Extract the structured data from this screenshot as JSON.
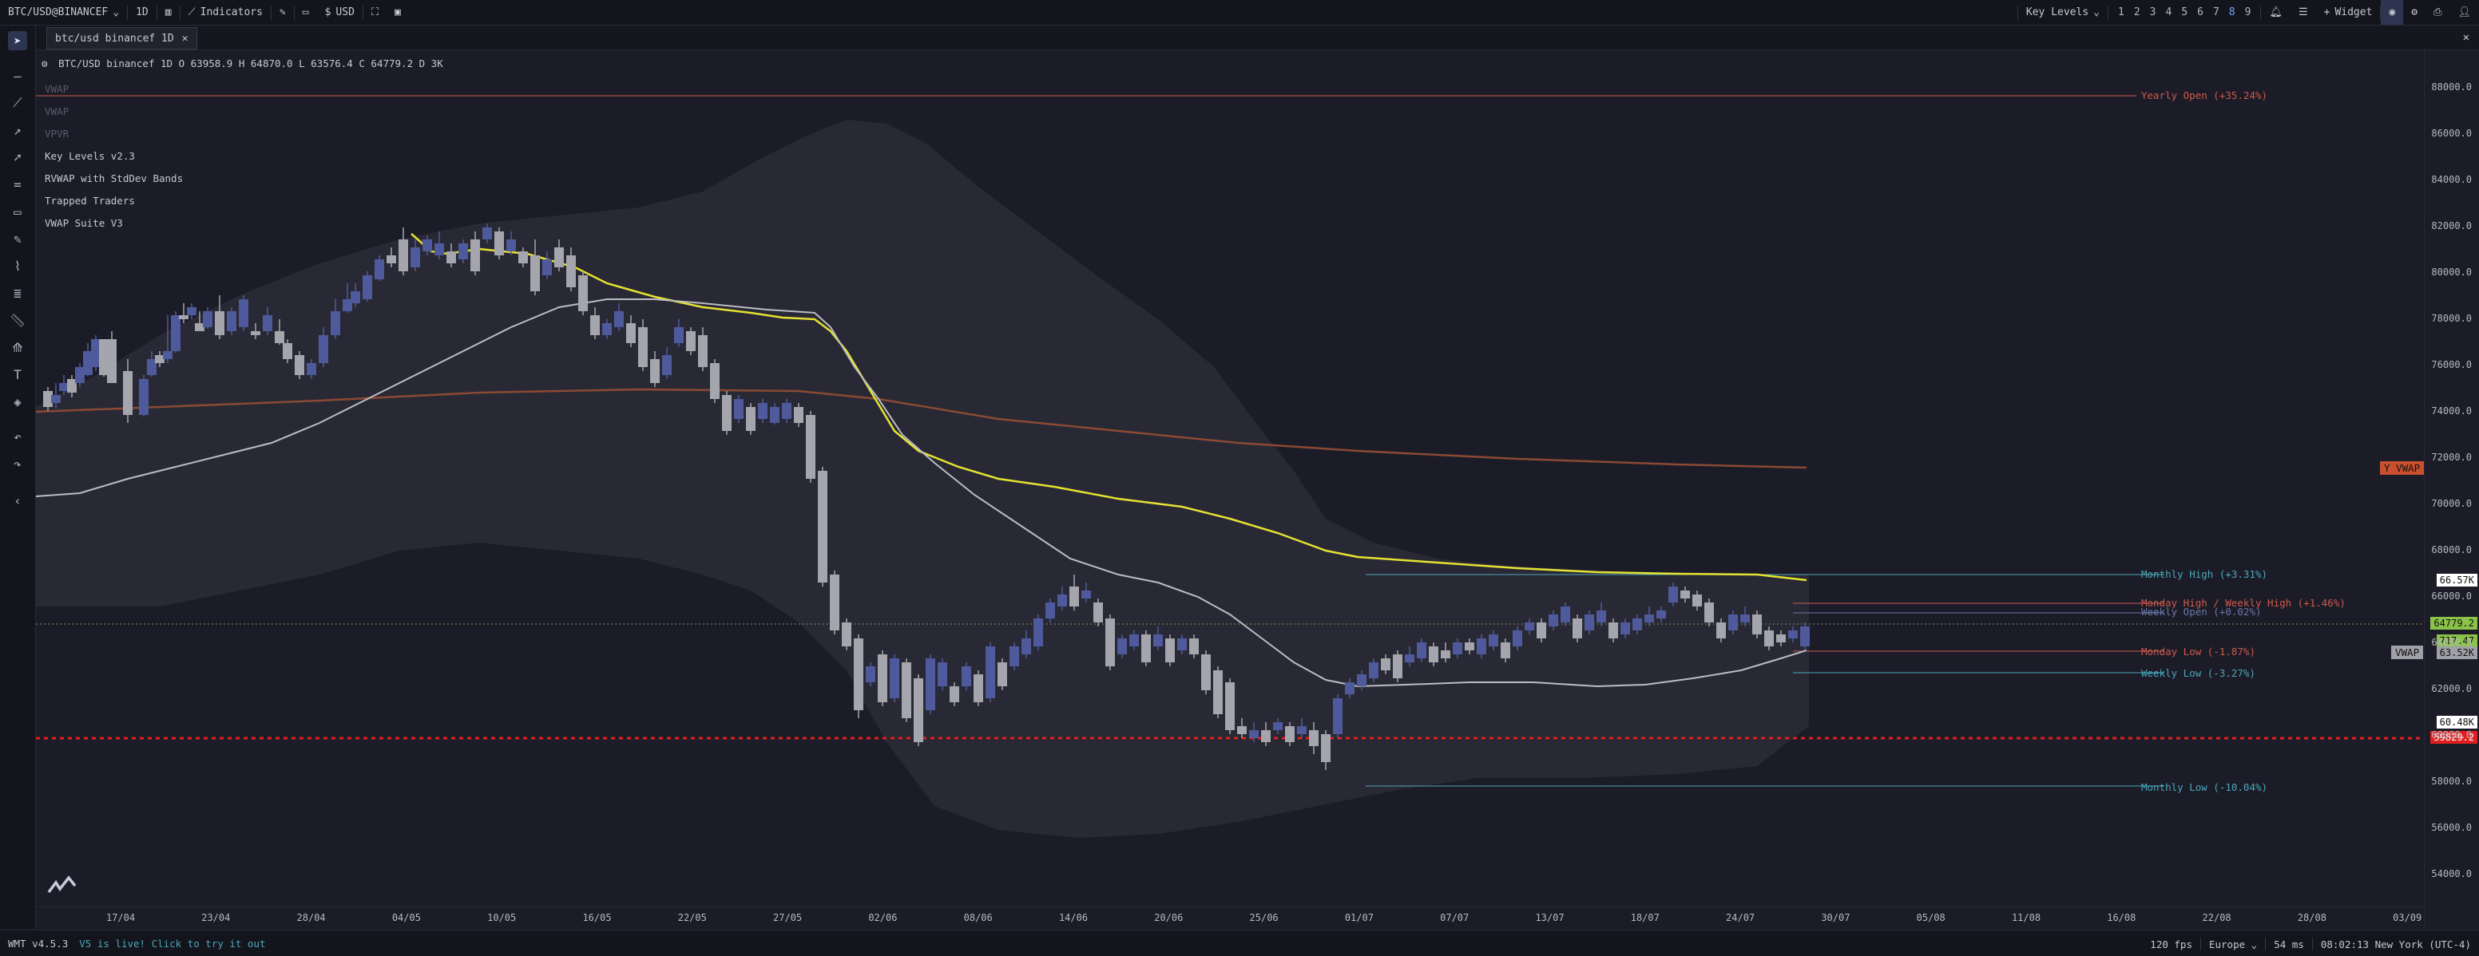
{
  "topbar": {
    "symbol": "BTC/USD@BINANCEF",
    "interval": "1D",
    "indicators_label": "Indicators",
    "currency": "USD",
    "key_levels_label": "Key Levels",
    "timeframes": [
      "1",
      "2",
      "3",
      "4",
      "5",
      "6",
      "7",
      "8",
      "9"
    ],
    "active_timeframe": "8",
    "widget_label": "Widget"
  },
  "tab": {
    "label": "btc/usd binancef 1D"
  },
  "legend": {
    "title": "BTC/USD binancef 1D",
    "ohlc": "O 63958.9 H 64870.0 L 63576.4 C 64779.2 D 3K"
  },
  "indicators": [
    "VWAP",
    "VWAP",
    "VPVR",
    "Key Levels v2.3",
    "RVWAP with StdDev Bands",
    "Trapped Traders",
    "VWAP Suite V3"
  ],
  "levels": {
    "yearly_open": "Yearly Open (+35.24%)",
    "monthly_high": "Monthly High (+3.31%)",
    "monday_weekly_high": "Monday High / Weekly High (+1.46%)",
    "weekly_open": "Weekly Open (+0.02%)",
    "monday_low": "Monday Low (-1.87%)",
    "weekly_low": "Weekly Low (-3.27%)",
    "monthly_low": "Monthly Low (-10.04%)",
    "y_vwap": "Y VWAP",
    "vwap": "VWAP"
  },
  "yaxis": {
    "ticks": [
      "88000.0",
      "86000.0",
      "84000.0",
      "82000.0",
      "80000.0",
      "78000.0",
      "76000.0",
      "74000.0",
      "72000.0",
      "70000.0",
      "68000.0",
      "66000.0",
      "64000.0",
      "62000.0",
      "60000.0",
      "58000.0",
      "56000.0",
      "54000.0"
    ],
    "label_high": "66.57K",
    "label_price": "64779.2",
    "label_price2": "717.47",
    "label_vwap": "63.52K",
    "label_low": "60.48K",
    "label_red": "59829.2"
  },
  "xaxis": {
    "ticks": [
      "17/04",
      "23/04",
      "28/04",
      "04/05",
      "10/05",
      "16/05",
      "22/05",
      "27/05",
      "02/06",
      "08/06",
      "14/06",
      "20/06",
      "25/06",
      "01/07",
      "07/07",
      "13/07",
      "18/07",
      "24/07",
      "30/07",
      "05/08",
      "11/08",
      "16/08",
      "22/08",
      "28/08",
      "03/09"
    ]
  },
  "status": {
    "version": "WMT v4.5.3",
    "announcement": "V5 is live! Click to try it out",
    "fps": "120 fps",
    "region": "Europe",
    "latency": "54 ms",
    "clock": "08:02:13 New York (UTC-4)"
  },
  "colors": {
    "background": "#1c1c28",
    "bull": "#4f5a9c",
    "bear": "#a5a5ad",
    "ma_yellow": "#e5e332",
    "ma_white": "#bcbcc4",
    "ma_brown": "#8b4a33",
    "level_red": "#cc5a4a",
    "level_cyan": "#4aa8b8",
    "price_green": "#8bc34a",
    "red_line": "#e02020"
  }
}
